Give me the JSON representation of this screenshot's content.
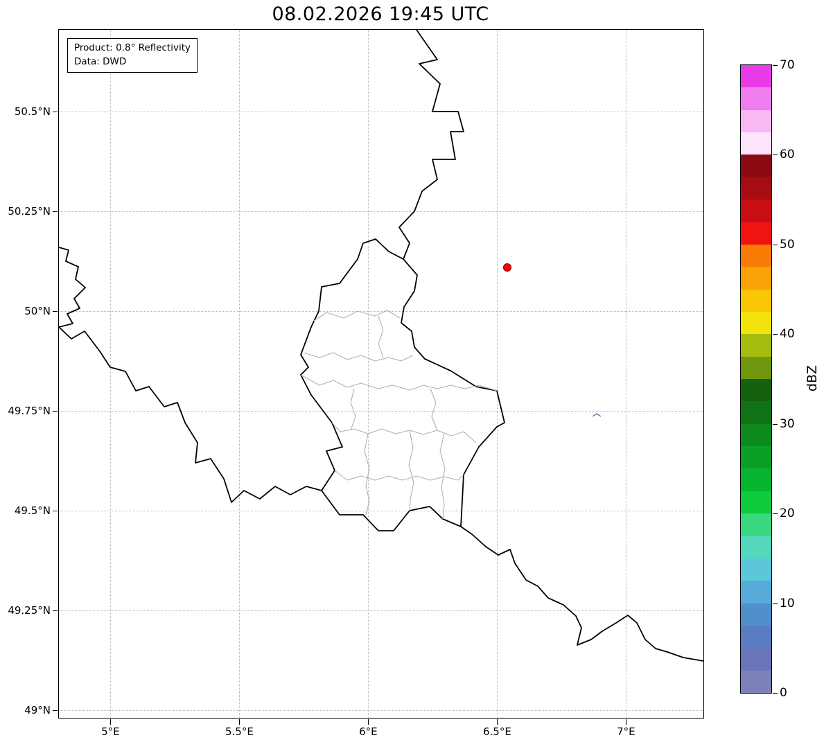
{
  "title": "08.02.2026 19:45 UTC",
  "info_box": {
    "product": "Product: 0.8° Reflectivity",
    "source": "Data: DWD"
  },
  "map": {
    "lat_ticks": [
      {
        "label": "50.5°N",
        "pos": 11.9
      },
      {
        "label": "50.25°N",
        "pos": 26.4
      },
      {
        "label": "50°N",
        "pos": 40.9
      },
      {
        "label": "49.75°N",
        "pos": 55.4
      },
      {
        "label": "49.5°N",
        "pos": 69.9
      },
      {
        "label": "49.25°N",
        "pos": 84.4
      },
      {
        "label": "49°N",
        "pos": 98.9
      }
    ],
    "lon_ticks": [
      {
        "label": "5°E",
        "pos": 8.0
      },
      {
        "label": "5.5°E",
        "pos": 28.0
      },
      {
        "label": "6°E",
        "pos": 48.0
      },
      {
        "label": "6.5°E",
        "pos": 68.0
      },
      {
        "label": "7°E",
        "pos": 88.0
      }
    ]
  },
  "colorbar": {
    "label": "dBZ",
    "min": 0,
    "max": 70,
    "ticks": [
      {
        "label": "70",
        "pos": 0
      },
      {
        "label": "60",
        "pos": 14.29
      },
      {
        "label": "50",
        "pos": 28.57
      },
      {
        "label": "40",
        "pos": 42.86
      },
      {
        "label": "30",
        "pos": 57.14
      },
      {
        "label": "20",
        "pos": 71.43
      },
      {
        "label": "10",
        "pos": 85.71
      },
      {
        "label": "0",
        "pos": 100
      }
    ],
    "segments_top_to_bottom": [
      "#e83ce8",
      "#f07eee",
      "#f8b8f4",
      "#fce4fb",
      "#8c0b12",
      "#a60d13",
      "#c90e13",
      "#f01310",
      "#f97c06",
      "#faa307",
      "#fbc508",
      "#f2e30d",
      "#a4bc0e",
      "#6f970d",
      "#14610e",
      "#0f7316",
      "#0d8a1e",
      "#0aa027",
      "#08b530",
      "#0ecb3c",
      "#38d77f",
      "#53d8bb",
      "#5bc7d8",
      "#56abd8",
      "#4f8fcc",
      "#5a7cc2",
      "#6a74b8",
      "#7d81b9"
    ]
  },
  "theme": {
    "border": "#000000",
    "canton": "#b0b0b0",
    "grid": "#b5b5b5",
    "water": "#3a6fb0",
    "radar": "#ff0000",
    "radar_edge": "#7a0000"
  }
}
